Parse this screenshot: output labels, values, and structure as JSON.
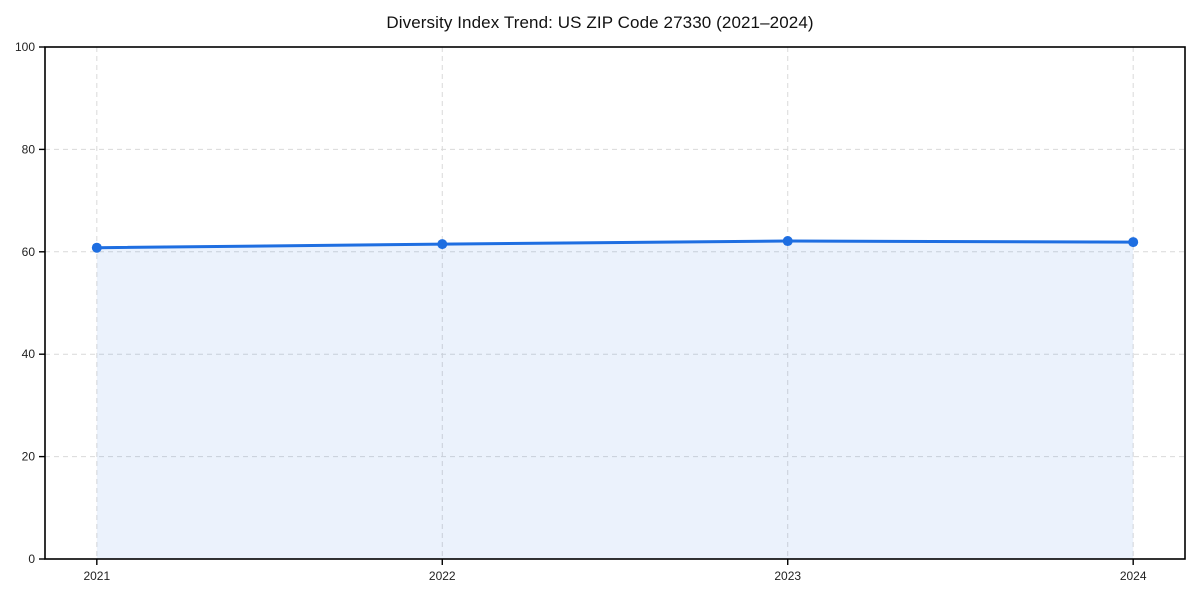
{
  "chart_data": {
    "type": "area",
    "title": "Diversity Index Trend: US ZIP Code 27330 (2021–2024)",
    "series_name": "Diversity Index",
    "x": [
      2021,
      2022,
      2023,
      2024
    ],
    "values": [
      60.8,
      61.5,
      62.1,
      61.9
    ],
    "xlabel": "",
    "ylabel": "",
    "xlim": [
      2020.85,
      2024.15
    ],
    "ylim": [
      0,
      100
    ],
    "xticks": [
      2021,
      2022,
      2023,
      2024
    ],
    "xtick_labels": [
      "2021",
      "2022",
      "2023",
      "2024"
    ],
    "yticks": [
      0,
      20,
      40,
      60,
      80,
      100
    ],
    "ytick_labels": [
      "0",
      "20",
      "40",
      "60",
      "80",
      "100"
    ],
    "grid": true,
    "grid_style": "dashed",
    "legend": "none",
    "colors": {
      "line": "#1e6ee1",
      "marker": "#1e6ee1",
      "fill": "rgba(30, 110, 225, 0.09)",
      "grid": "#d9d9d9",
      "axis": "#000000",
      "tick_label": "#222222",
      "title": "#111111",
      "background": "#ffffff"
    }
  }
}
